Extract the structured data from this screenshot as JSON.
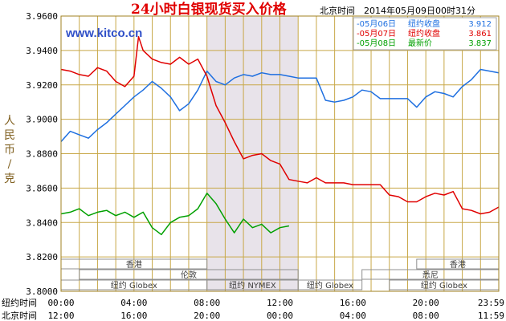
{
  "chart_data": {
    "type": "line",
    "title": "24小时白银现货买入价格",
    "timestamp": "北京时间　2014年05月09日00时31分",
    "watermark": "www.kitco.cn",
    "ylabel": "人民币/克",
    "ylim": [
      3.8,
      3.96
    ],
    "y_ticks": [
      "3.9600",
      "3.9400",
      "3.9200",
      "3.9000",
      "3.8800",
      "3.8600",
      "3.8400",
      "3.8200",
      "3.8000"
    ],
    "x_range_hours": [
      0,
      24
    ],
    "x_row1_label": "纽约时间",
    "x_row2_label": "北京时间",
    "x_ticks_ny": [
      "00:00",
      "04:00",
      "08:00",
      "12:00",
      "16:00",
      "20:00",
      "23:59"
    ],
    "x_ticks_bj": [
      "12:00",
      "16:00",
      "20:00",
      "00:00",
      "04:00",
      "08:00",
      "11:59"
    ],
    "shaded_session_hours": [
      8,
      13
    ],
    "grid": true,
    "legend_position": "top-right",
    "legend": [
      {
        "date": "05月06日",
        "label": "纽约收盘",
        "value": "3.912",
        "color": "#1e6fe0"
      },
      {
        "date": "05月07日",
        "label": "纽约收盘",
        "value": "3.861",
        "color": "#e00000"
      },
      {
        "date": "05月08日",
        "label": "最新价",
        "value": "3.837",
        "color": "#00a000"
      }
    ],
    "market_sessions": [
      {
        "label": "香港",
        "start": 0,
        "end": 8,
        "row": 1
      },
      {
        "label": "伦敦",
        "start": 1,
        "end": 13,
        "row": 2
      },
      {
        "label": "纽约 Globex",
        "start": 0,
        "end": 8,
        "row": 3
      },
      {
        "label": "纽约 NYMEX",
        "start": 8,
        "end": 13,
        "row": 3
      },
      {
        "label": "纽约 Globex",
        "start": 13,
        "end": 16.5,
        "row": 3
      },
      {
        "label": "香港",
        "start": 19.5,
        "end": 24,
        "row": 1
      },
      {
        "label": "悉尼",
        "start": 16.5,
        "end": 24,
        "row": 2
      },
      {
        "label": "纽约 Globex",
        "start": 18,
        "end": 24,
        "row": 3
      }
    ],
    "series": [
      {
        "name": "05月06日",
        "color": "#1e6fe0",
        "x": [
          0,
          0.5,
          1,
          1.5,
          2,
          2.5,
          3,
          3.5,
          4,
          4.5,
          5,
          5.5,
          6,
          6.5,
          7,
          7.5,
          8,
          8.5,
          9,
          9.5,
          10,
          10.5,
          11,
          11.5,
          12,
          12.5,
          13,
          13.5,
          14,
          14.5,
          15,
          15.5,
          16,
          16.5,
          17,
          17.5,
          18,
          18.5,
          19,
          19.5,
          20,
          20.5,
          21,
          21.5,
          22,
          22.5,
          23,
          23.5,
          24
        ],
        "values": [
          3.887,
          3.893,
          3.891,
          3.889,
          3.894,
          3.898,
          3.903,
          3.908,
          3.913,
          3.917,
          3.922,
          3.918,
          3.913,
          3.905,
          3.909,
          3.917,
          3.928,
          3.922,
          3.92,
          3.924,
          3.926,
          3.925,
          3.927,
          3.926,
          3.926,
          3.925,
          3.924,
          3.924,
          3.924,
          3.911,
          3.91,
          3.911,
          3.913,
          3.917,
          3.916,
          3.912,
          3.912,
          3.912,
          3.912,
          3.907,
          3.913,
          3.916,
          3.915,
          3.913,
          3.919,
          3.923,
          3.929,
          3.928,
          3.927
        ]
      },
      {
        "name": "05月07日",
        "color": "#e00000",
        "x": [
          0,
          0.5,
          1,
          1.5,
          2,
          2.5,
          3,
          3.5,
          4,
          4.25,
          4.5,
          5,
          5.5,
          6,
          6.5,
          7,
          7.5,
          8,
          8.5,
          9,
          9.5,
          10,
          10.5,
          11,
          11.5,
          12,
          12.5,
          13,
          13.5,
          14,
          14.5,
          15,
          15.5,
          16,
          16.5,
          17,
          17.5,
          18,
          18.5,
          19,
          19.5,
          20,
          20.5,
          21,
          21.5,
          22,
          22.5,
          23,
          23.5,
          24
        ],
        "values": [
          3.929,
          3.928,
          3.926,
          3.925,
          3.93,
          3.928,
          3.922,
          3.919,
          3.925,
          3.948,
          3.94,
          3.935,
          3.933,
          3.932,
          3.936,
          3.932,
          3.935,
          3.925,
          3.908,
          3.898,
          3.887,
          3.877,
          3.879,
          3.88,
          3.876,
          3.874,
          3.865,
          3.864,
          3.863,
          3.866,
          3.863,
          3.863,
          3.863,
          3.862,
          3.862,
          3.862,
          3.862,
          3.856,
          3.855,
          3.852,
          3.852,
          3.855,
          3.857,
          3.856,
          3.858,
          3.848,
          3.847,
          3.845,
          3.846,
          3.849
        ]
      },
      {
        "name": "05月08日",
        "color": "#00a000",
        "x": [
          0,
          0.5,
          1,
          1.5,
          2,
          2.5,
          3,
          3.5,
          4,
          4.5,
          5,
          5.5,
          6,
          6.5,
          7,
          7.5,
          8,
          8.5,
          9,
          9.5,
          10,
          10.5,
          11,
          11.5,
          12,
          12.5
        ],
        "values": [
          3.845,
          3.846,
          3.848,
          3.844,
          3.846,
          3.847,
          3.844,
          3.846,
          3.843,
          3.846,
          3.837,
          3.833,
          3.84,
          3.843,
          3.844,
          3.848,
          3.857,
          3.851,
          3.842,
          3.834,
          3.842,
          3.837,
          3.839,
          3.834,
          3.837,
          3.838
        ]
      }
    ]
  }
}
